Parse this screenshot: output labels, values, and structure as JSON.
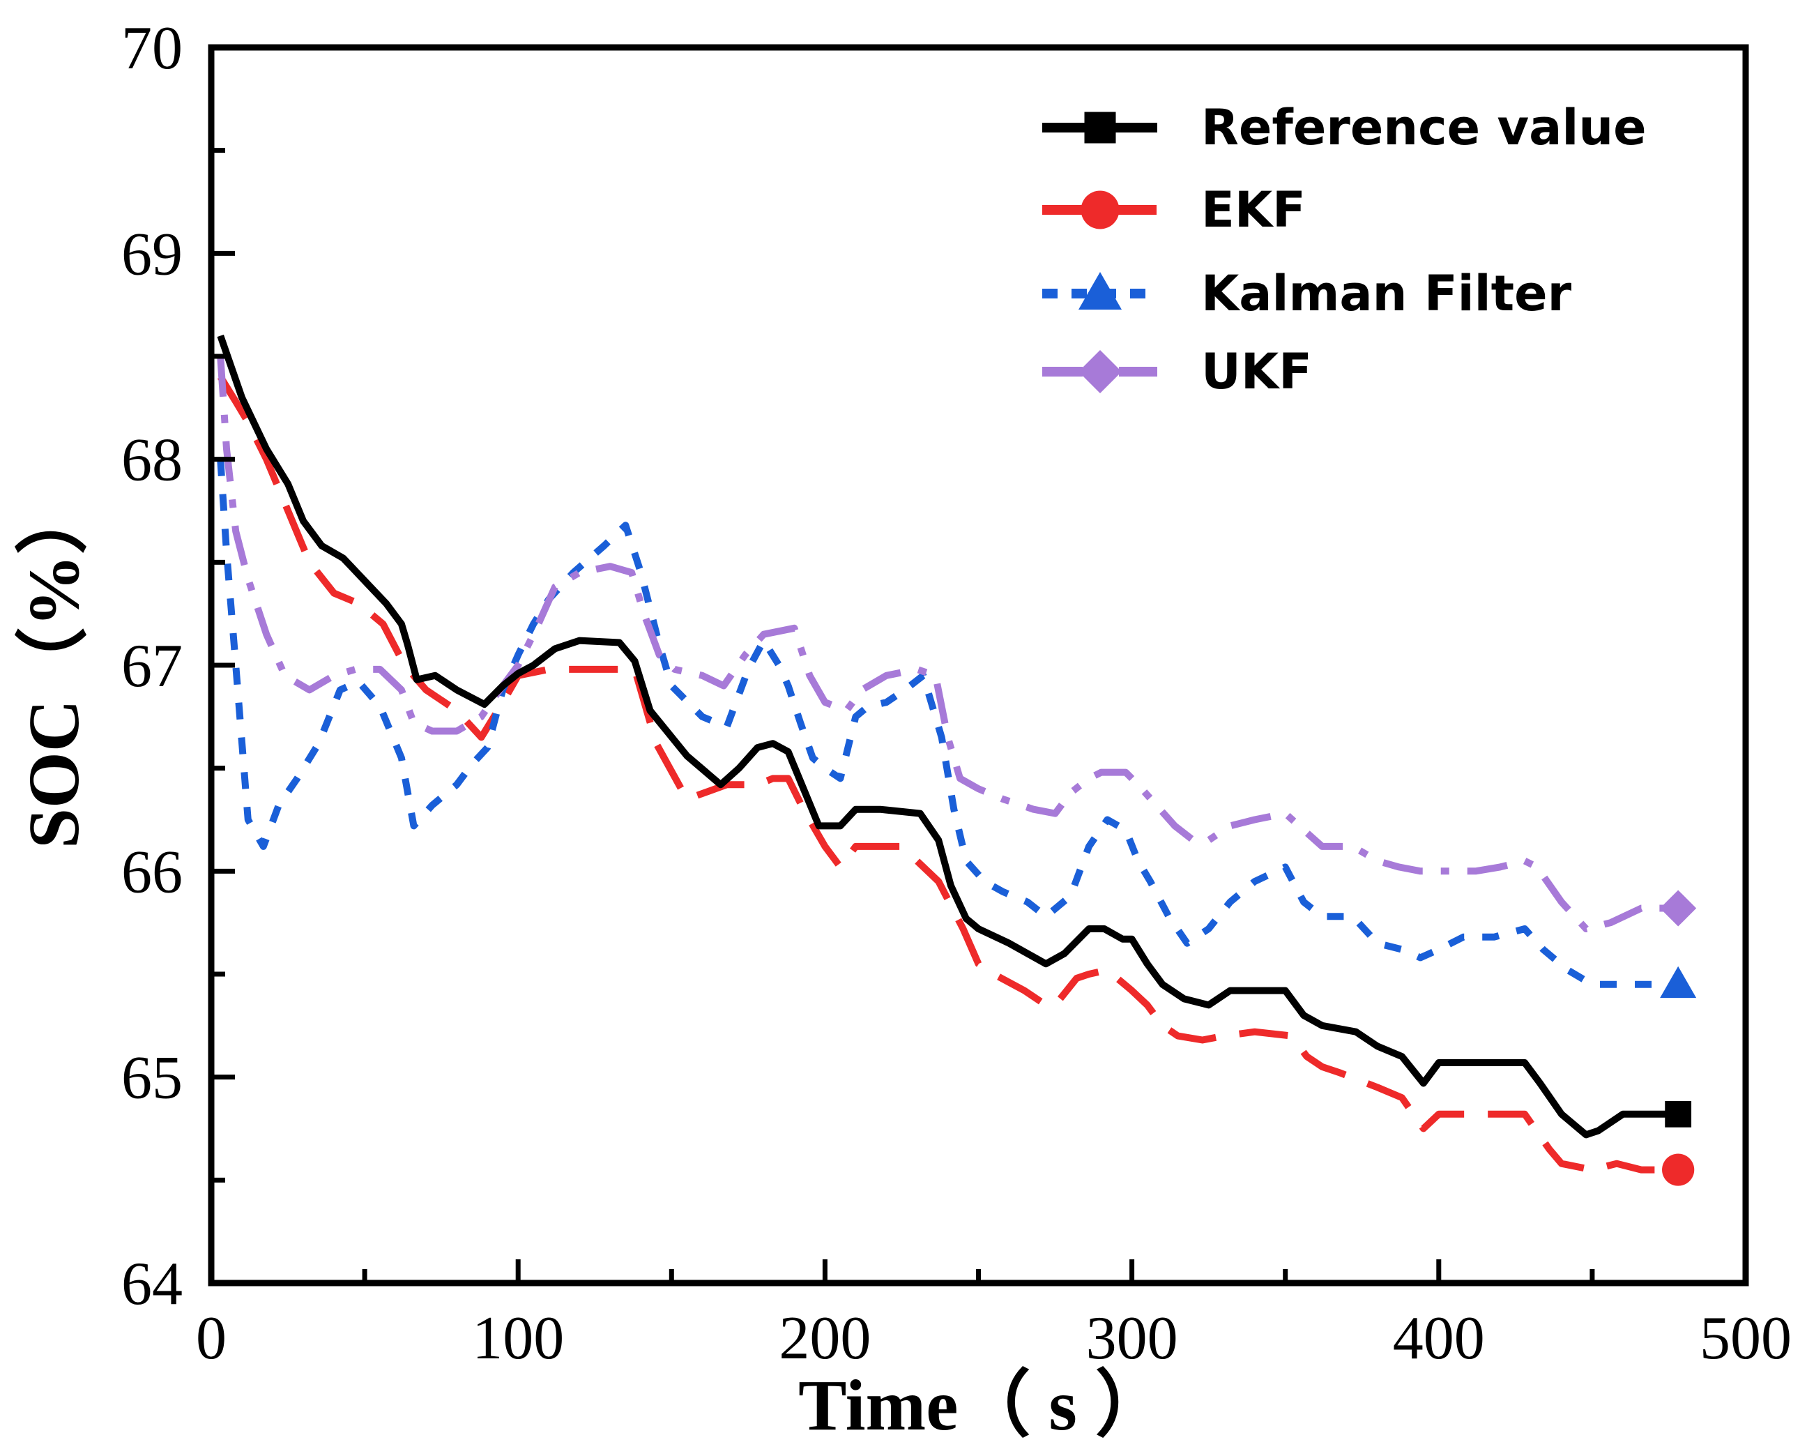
{
  "chart_data": {
    "type": "line",
    "title": "",
    "xlabel": "Time（ s ）",
    "ylabel": "SOC（%）",
    "xlim": [
      0,
      500
    ],
    "ylim": [
      64,
      70
    ],
    "xticks": [
      0,
      100,
      200,
      300,
      400,
      500
    ],
    "yticks": [
      64,
      65,
      66,
      67,
      68,
      69,
      70
    ],
    "grid": false,
    "legend_position": "top-right",
    "series": [
      {
        "name": "Reference value",
        "color": "#000000",
        "dash": "solid",
        "marker": "square",
        "points": [
          [
            3,
            68.6
          ],
          [
            10,
            68.3
          ],
          [
            18,
            68.05
          ],
          [
            25,
            67.88
          ],
          [
            30,
            67.7
          ],
          [
            36,
            67.58
          ],
          [
            43,
            67.52
          ],
          [
            50,
            67.41
          ],
          [
            57,
            67.3
          ],
          [
            62,
            67.2
          ],
          [
            64,
            67.1
          ],
          [
            67,
            66.93
          ],
          [
            73,
            66.95
          ],
          [
            80,
            66.88
          ],
          [
            89,
            66.81
          ],
          [
            95,
            66.9
          ],
          [
            100,
            66.96
          ],
          [
            105,
            67.0
          ],
          [
            112,
            67.08
          ],
          [
            120,
            67.12
          ],
          [
            133,
            67.11
          ],
          [
            138,
            67.02
          ],
          [
            143,
            66.78
          ],
          [
            155,
            66.56
          ],
          [
            166,
            66.42
          ],
          [
            172,
            66.5
          ],
          [
            178,
            66.6
          ],
          [
            183,
            66.62
          ],
          [
            188,
            66.58
          ],
          [
            193,
            66.4
          ],
          [
            198,
            66.22
          ],
          [
            205,
            66.22
          ],
          [
            210,
            66.3
          ],
          [
            218,
            66.3
          ],
          [
            231,
            66.28
          ],
          [
            237,
            66.15
          ],
          [
            241,
            65.93
          ],
          [
            246,
            65.77
          ],
          [
            250,
            65.72
          ],
          [
            260,
            65.65
          ],
          [
            272,
            65.55
          ],
          [
            278,
            65.6
          ],
          [
            286,
            65.72
          ],
          [
            291,
            65.72
          ],
          [
            297,
            65.67
          ],
          [
            300,
            65.67
          ],
          [
            305,
            65.55
          ],
          [
            310,
            65.45
          ],
          [
            317,
            65.38
          ],
          [
            325,
            65.35
          ],
          [
            332,
            65.42
          ],
          [
            350,
            65.42
          ],
          [
            356,
            65.3
          ],
          [
            362,
            65.25
          ],
          [
            373,
            65.22
          ],
          [
            380,
            65.15
          ],
          [
            388,
            65.1
          ],
          [
            395,
            64.97
          ],
          [
            400,
            65.07
          ],
          [
            428,
            65.07
          ],
          [
            433,
            64.97
          ],
          [
            440,
            64.82
          ],
          [
            448,
            64.72
          ],
          [
            452,
            64.74
          ],
          [
            460,
            64.82
          ],
          [
            478,
            64.82
          ]
        ]
      },
      {
        "name": "EKF",
        "color": "#ee2a2a",
        "dash": "long-dash",
        "marker": "circle",
        "points": [
          [
            3,
            68.4
          ],
          [
            8,
            68.28
          ],
          [
            12,
            68.18
          ],
          [
            18,
            68.0
          ],
          [
            25,
            67.75
          ],
          [
            32,
            67.5
          ],
          [
            40,
            67.35
          ],
          [
            48,
            67.3
          ],
          [
            56,
            67.2
          ],
          [
            63,
            67.0
          ],
          [
            70,
            66.88
          ],
          [
            80,
            66.78
          ],
          [
            88,
            66.65
          ],
          [
            95,
            66.82
          ],
          [
            100,
            66.95
          ],
          [
            110,
            66.98
          ],
          [
            138,
            66.98
          ],
          [
            145,
            66.62
          ],
          [
            155,
            66.35
          ],
          [
            168,
            66.42
          ],
          [
            178,
            66.42
          ],
          [
            183,
            66.45
          ],
          [
            188,
            66.45
          ],
          [
            193,
            66.3
          ],
          [
            200,
            66.12
          ],
          [
            205,
            66.02
          ],
          [
            210,
            66.12
          ],
          [
            225,
            66.12
          ],
          [
            237,
            65.95
          ],
          [
            245,
            65.72
          ],
          [
            250,
            65.55
          ],
          [
            255,
            65.5
          ],
          [
            265,
            65.42
          ],
          [
            272,
            65.35
          ],
          [
            275,
            65.35
          ],
          [
            282,
            65.48
          ],
          [
            286,
            65.5
          ],
          [
            292,
            65.52
          ],
          [
            300,
            65.42
          ],
          [
            305,
            65.35
          ],
          [
            310,
            65.25
          ],
          [
            315,
            65.2
          ],
          [
            323,
            65.18
          ],
          [
            330,
            65.2
          ],
          [
            340,
            65.22
          ],
          [
            352,
            65.2
          ],
          [
            357,
            65.1
          ],
          [
            362,
            65.05
          ],
          [
            368,
            65.02
          ],
          [
            380,
            64.95
          ],
          [
            388,
            64.9
          ],
          [
            395,
            64.75
          ],
          [
            400,
            64.82
          ],
          [
            412,
            64.82
          ],
          [
            420,
            64.82
          ],
          [
            428,
            64.82
          ],
          [
            436,
            64.65
          ],
          [
            440,
            64.58
          ],
          [
            450,
            64.55
          ],
          [
            458,
            64.58
          ],
          [
            466,
            64.55
          ],
          [
            478,
            64.55
          ]
        ]
      },
      {
        "name": "Kalman Filter",
        "color": "#1a5fd8",
        "dash": "short-dash",
        "marker": "triangle",
        "points": [
          [
            3,
            68.0
          ],
          [
            5,
            67.55
          ],
          [
            8,
            67.0
          ],
          [
            12,
            66.25
          ],
          [
            17,
            66.12
          ],
          [
            22,
            66.32
          ],
          [
            28,
            66.45
          ],
          [
            35,
            66.62
          ],
          [
            42,
            66.88
          ],
          [
            48,
            66.92
          ],
          [
            55,
            66.8
          ],
          [
            62,
            66.55
          ],
          [
            66,
            66.22
          ],
          [
            72,
            66.32
          ],
          [
            80,
            66.42
          ],
          [
            85,
            66.52
          ],
          [
            90,
            66.6
          ],
          [
            95,
            66.88
          ],
          [
            100,
            67.05
          ],
          [
            105,
            67.2
          ],
          [
            110,
            67.32
          ],
          [
            118,
            67.45
          ],
          [
            128,
            67.58
          ],
          [
            135,
            67.68
          ],
          [
            140,
            67.45
          ],
          [
            146,
            67.1
          ],
          [
            150,
            66.9
          ],
          [
            160,
            66.75
          ],
          [
            168,
            66.7
          ],
          [
            175,
            66.98
          ],
          [
            180,
            67.12
          ],
          [
            185,
            67.0
          ],
          [
            188,
            66.9
          ],
          [
            192,
            66.72
          ],
          [
            196,
            66.55
          ],
          [
            200,
            66.5
          ],
          [
            205,
            66.45
          ],
          [
            210,
            66.75
          ],
          [
            214,
            66.8
          ],
          [
            220,
            66.82
          ],
          [
            226,
            66.88
          ],
          [
            232,
            66.95
          ],
          [
            238,
            66.65
          ],
          [
            242,
            66.3
          ],
          [
            246,
            66.05
          ],
          [
            252,
            65.95
          ],
          [
            258,
            65.9
          ],
          [
            266,
            65.85
          ],
          [
            272,
            65.78
          ],
          [
            280,
            65.88
          ],
          [
            286,
            66.12
          ],
          [
            292,
            66.25
          ],
          [
            298,
            66.2
          ],
          [
            302,
            66.05
          ],
          [
            306,
            65.95
          ],
          [
            312,
            65.78
          ],
          [
            318,
            65.65
          ],
          [
            325,
            65.72
          ],
          [
            332,
            65.85
          ],
          [
            340,
            65.95
          ],
          [
            350,
            66.02
          ],
          [
            356,
            65.85
          ],
          [
            362,
            65.78
          ],
          [
            372,
            65.78
          ],
          [
            380,
            65.65
          ],
          [
            388,
            65.62
          ],
          [
            394,
            65.58
          ],
          [
            400,
            65.62
          ],
          [
            408,
            65.68
          ],
          [
            418,
            65.68
          ],
          [
            428,
            65.72
          ],
          [
            434,
            65.62
          ],
          [
            442,
            65.52
          ],
          [
            450,
            65.45
          ],
          [
            458,
            65.45
          ],
          [
            470,
            65.45
          ],
          [
            478,
            65.45
          ]
        ]
      },
      {
        "name": "UKF",
        "color": "#a77ad8",
        "dash": "dash-dot",
        "marker": "diamond",
        "points": [
          [
            3,
            68.5
          ],
          [
            5,
            68.05
          ],
          [
            8,
            67.65
          ],
          [
            12,
            67.42
          ],
          [
            18,
            67.15
          ],
          [
            24,
            66.95
          ],
          [
            32,
            66.88
          ],
          [
            40,
            66.95
          ],
          [
            47,
            66.98
          ],
          [
            55,
            66.98
          ],
          [
            62,
            66.88
          ],
          [
            66,
            66.72
          ],
          [
            72,
            66.68
          ],
          [
            80,
            66.68
          ],
          [
            88,
            66.75
          ],
          [
            94,
            66.88
          ],
          [
            100,
            67.0
          ],
          [
            106,
            67.18
          ],
          [
            112,
            67.38
          ],
          [
            120,
            67.45
          ],
          [
            130,
            67.48
          ],
          [
            137,
            67.45
          ],
          [
            141,
            67.25
          ],
          [
            146,
            67.05
          ],
          [
            151,
            66.98
          ],
          [
            160,
            66.95
          ],
          [
            167,
            66.9
          ],
          [
            174,
            67.05
          ],
          [
            180,
            67.15
          ],
          [
            190,
            67.18
          ],
          [
            195,
            66.95
          ],
          [
            200,
            66.82
          ],
          [
            207,
            66.78
          ],
          [
            212,
            66.88
          ],
          [
            220,
            66.95
          ],
          [
            230,
            66.98
          ],
          [
            236,
            66.95
          ],
          [
            240,
            66.65
          ],
          [
            244,
            66.45
          ],
          [
            250,
            66.4
          ],
          [
            258,
            66.35
          ],
          [
            268,
            66.3
          ],
          [
            275,
            66.28
          ],
          [
            280,
            66.38
          ],
          [
            286,
            66.45
          ],
          [
            290,
            66.48
          ],
          [
            298,
            66.48
          ],
          [
            302,
            66.42
          ],
          [
            308,
            66.32
          ],
          [
            314,
            66.22
          ],
          [
            320,
            66.15
          ],
          [
            325,
            66.15
          ],
          [
            332,
            66.22
          ],
          [
            340,
            66.25
          ],
          [
            350,
            66.28
          ],
          [
            356,
            66.2
          ],
          [
            362,
            66.12
          ],
          [
            372,
            66.12
          ],
          [
            380,
            66.05
          ],
          [
            387,
            66.02
          ],
          [
            394,
            66.0
          ],
          [
            400,
            66.0
          ],
          [
            412,
            66.0
          ],
          [
            420,
            66.02
          ],
          [
            428,
            66.05
          ],
          [
            432,
            66.02
          ],
          [
            440,
            65.85
          ],
          [
            448,
            65.72
          ],
          [
            456,
            65.75
          ],
          [
            466,
            65.82
          ],
          [
            478,
            65.82
          ]
        ]
      }
    ]
  }
}
